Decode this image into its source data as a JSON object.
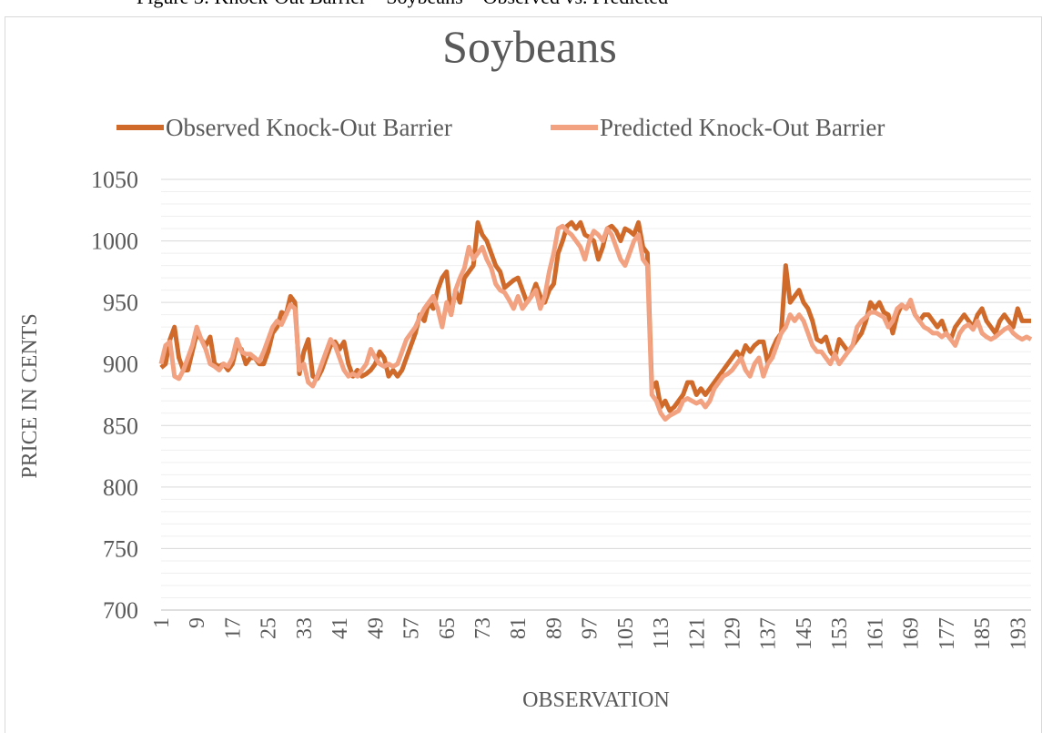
{
  "chart_data": {
    "type": "line",
    "caption": "Figure 3: Knock-Out Barrier – Soybeans – Observed vs. Predicted",
    "title": "Soybeans",
    "y_label": "PRICE IN CENTS",
    "x_label": "OBSERVATION",
    "ylim": [
      700,
      1050
    ],
    "yticks": [
      700,
      750,
      800,
      850,
      900,
      950,
      1000,
      1050
    ],
    "minor_yticks": [
      710,
      720,
      730,
      740,
      760,
      770,
      780,
      790,
      810,
      820,
      830,
      840,
      860,
      870,
      880,
      890,
      910,
      920,
      930,
      940,
      960,
      970,
      980,
      990,
      1010,
      1020,
      1030,
      1040
    ],
    "grid": true,
    "legend": "top",
    "categories": [
      1,
      null,
      null,
      null,
      null,
      null,
      null,
      null,
      9,
      null,
      null,
      null,
      null,
      null,
      null,
      null,
      17,
      null,
      null,
      null,
      null,
      null,
      null,
      null,
      25,
      null,
      null,
      null,
      null,
      null,
      null,
      null,
      33,
      null,
      null,
      null,
      null,
      null,
      null,
      null,
      41,
      null,
      null,
      null,
      null,
      null,
      null,
      null,
      49,
      null,
      null,
      null,
      null,
      null,
      null,
      null,
      57,
      null,
      null,
      null,
      null,
      null,
      null,
      null,
      65,
      null,
      null,
      null,
      null,
      null,
      null,
      null,
      73,
      null,
      null,
      null,
      null,
      null,
      null,
      null,
      81,
      null,
      null,
      null,
      null,
      null,
      null,
      null,
      89,
      null,
      null,
      null,
      null,
      null,
      null,
      null,
      97,
      null,
      null,
      null,
      null,
      null,
      null,
      null,
      105,
      null,
      null,
      null,
      null,
      null,
      null,
      null,
      113,
      null,
      null,
      null,
      null,
      null,
      null,
      null,
      121,
      null,
      null,
      null,
      null,
      null,
      null,
      null,
      129,
      null,
      null,
      null,
      null,
      null,
      null,
      null,
      137,
      null,
      null,
      null,
      null,
      null,
      null,
      null,
      145,
      null,
      null,
      null,
      null,
      null,
      null,
      null,
      153,
      null,
      null,
      null,
      null,
      null,
      null,
      null,
      161,
      null,
      null,
      null,
      null,
      null,
      null,
      null,
      169,
      null,
      null,
      null,
      null,
      null,
      null,
      null,
      177,
      null,
      null,
      null,
      null,
      null,
      null,
      null,
      185,
      null,
      null,
      null,
      null,
      null,
      null,
      null,
      193,
      null,
      null,
      null
    ],
    "series": [
      {
        "name": "Observed Knock-Out Barrier",
        "color": "#d06a2a",
        "values": [
          897,
          900,
          920,
          930,
          905,
          895,
          895,
          910,
          925,
          920,
          915,
          922,
          900,
          898,
          900,
          895,
          900,
          915,
          912,
          900,
          905,
          905,
          900,
          900,
          910,
          925,
          930,
          942,
          940,
          955,
          950,
          892,
          910,
          920,
          890,
          888,
          895,
          905,
          915,
          918,
          912,
          918,
          900,
          890,
          895,
          890,
          892,
          895,
          900,
          910,
          905,
          890,
          895,
          890,
          895,
          905,
          915,
          925,
          940,
          935,
          950,
          945,
          960,
          970,
          975,
          940,
          960,
          950,
          970,
          975,
          980,
          1015,
          1005,
          1000,
          990,
          980,
          975,
          962,
          965,
          968,
          970,
          960,
          950,
          955,
          965,
          955,
          950,
          960,
          965,
          990,
          1000,
          1012,
          1015,
          1010,
          1015,
          1005,
          1003,
          1000,
          985,
          995,
          1010,
          1012,
          1008,
          1000,
          1010,
          1008,
          1005,
          1015,
          995,
          990,
          880,
          885,
          865,
          870,
          862,
          865,
          870,
          875,
          885,
          885,
          875,
          880,
          875,
          880,
          885,
          890,
          895,
          900,
          905,
          910,
          905,
          915,
          910,
          915,
          918,
          918,
          900,
          912,
          920,
          925,
          980,
          950,
          955,
          960,
          950,
          945,
          935,
          920,
          918,
          922,
          910,
          905,
          920,
          915,
          910,
          915,
          920,
          925,
          935,
          950,
          945,
          950,
          942,
          940,
          925,
          940,
          948,
          945,
          950,
          940,
          935,
          940,
          940,
          935,
          930,
          935,
          925,
          920,
          930,
          935,
          940,
          935,
          930,
          940,
          945,
          935,
          930,
          925,
          935,
          940,
          935,
          930,
          945,
          935,
          935,
          935
        ]
      },
      {
        "name": "Predicted Knock-Out Barrier",
        "color": "#f2a280",
        "values": [
          900,
          915,
          918,
          890,
          888,
          895,
          905,
          915,
          930,
          920,
          912,
          900,
          898,
          895,
          900,
          898,
          905,
          920,
          910,
          908,
          908,
          905,
          902,
          910,
          920,
          930,
          935,
          932,
          940,
          948,
          945,
          895,
          900,
          885,
          882,
          890,
          900,
          910,
          920,
          915,
          905,
          895,
          890,
          892,
          890,
          895,
          900,
          912,
          905,
          900,
          898,
          900,
          898,
          900,
          910,
          920,
          925,
          930,
          938,
          945,
          950,
          955,
          945,
          930,
          950,
          940,
          960,
          970,
          978,
          995,
          985,
          990,
          995,
          985,
          978,
          965,
          960,
          958,
          952,
          945,
          955,
          945,
          950,
          955,
          960,
          945,
          955,
          975,
          990,
          1010,
          1012,
          1008,
          1005,
          1000,
          995,
          985,
          1000,
          1008,
          1005,
          1000,
          1010,
          1005,
          995,
          985,
          980,
          990,
          1000,
          1005,
          985,
          980,
          875,
          870,
          860,
          855,
          858,
          860,
          862,
          870,
          872,
          870,
          868,
          870,
          865,
          870,
          880,
          885,
          890,
          892,
          895,
          900,
          905,
          895,
          890,
          900,
          905,
          890,
          900,
          905,
          915,
          925,
          930,
          940,
          935,
          940,
          935,
          925,
          915,
          910,
          910,
          905,
          900,
          908,
          900,
          905,
          910,
          915,
          930,
          935,
          938,
          942,
          942,
          940,
          938,
          930,
          935,
          945,
          948,
          945,
          952,
          940,
          935,
          930,
          928,
          925,
          925,
          922,
          925,
          920,
          915,
          925,
          930,
          932,
          928,
          935,
          925,
          922,
          920,
          922,
          925,
          928,
          930,
          925,
          922,
          920,
          922,
          920
        ]
      }
    ]
  }
}
